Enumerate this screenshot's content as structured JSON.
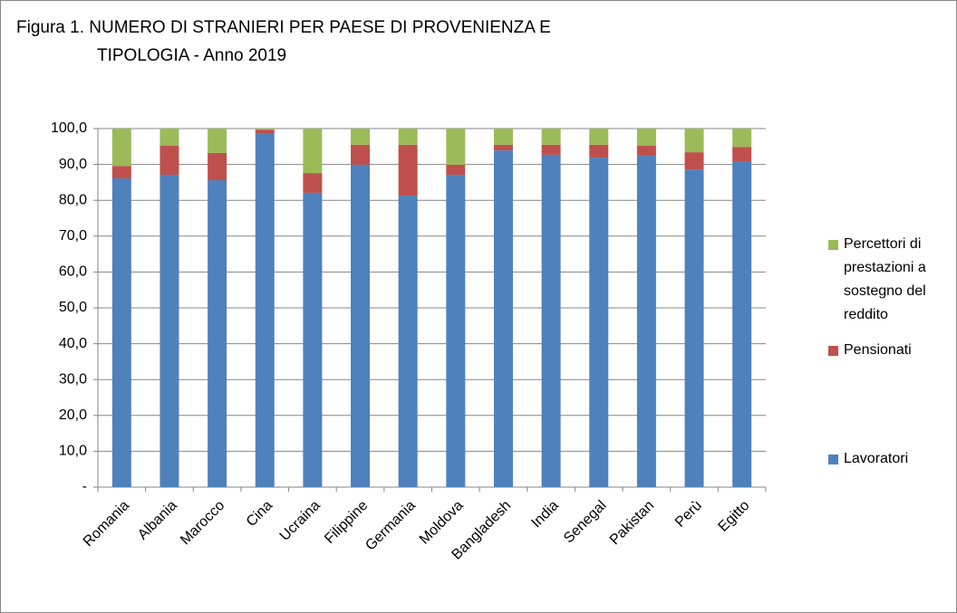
{
  "chart_data": {
    "type": "stacked_bar",
    "title": [
      "Figura 1. NUMERO DI STRANIERI PER PAESE DI PROVENIENZA E",
      "TIPOLOGIA  - Anno 2019"
    ],
    "categories": [
      "Romania",
      "Albania",
      "Marocco",
      "Cina",
      "Ucraina",
      "Filippine",
      "Germania",
      "Moldova",
      "Bangladesh",
      "India",
      "Senegal",
      "Pakistan",
      "Perù",
      "Egitto"
    ],
    "series": [
      {
        "name": "Lavoratori",
        "color": "#4f81bd",
        "values": [
          86.1,
          87.1,
          85.6,
          98.5,
          82.1,
          89.9,
          81.3,
          87.1,
          93.9,
          92.7,
          91.9,
          92.4,
          88.6,
          90.9
        ]
      },
      {
        "name": "Pensionati",
        "color": "#c0504d",
        "values": [
          3.5,
          8.1,
          7.6,
          1.2,
          5.5,
          5.6,
          14.2,
          2.8,
          1.6,
          2.8,
          3.6,
          2.8,
          4.8,
          4.0
        ]
      },
      {
        "name": "Percettori di prestazioni a sostegno del reddito",
        "color": "#9bbb59",
        "values": [
          10.4,
          4.8,
          6.8,
          0.3,
          12.4,
          4.5,
          4.5,
          10.1,
          4.5,
          4.5,
          4.5,
          4.8,
          6.6,
          5.1
        ]
      }
    ],
    "ylim": [
      0,
      100
    ],
    "yticks": [
      {
        "value": 0,
        "label": "-"
      },
      {
        "value": 10,
        "label": "10,0"
      },
      {
        "value": 20,
        "label": "20,0"
      },
      {
        "value": 30,
        "label": "30,0"
      },
      {
        "value": 40,
        "label": "40,0"
      },
      {
        "value": 50,
        "label": "50,0"
      },
      {
        "value": 60,
        "label": "60,0"
      },
      {
        "value": 70,
        "label": "70,0"
      },
      {
        "value": 80,
        "label": "80,0"
      },
      {
        "value": 90,
        "label": "90,0"
      },
      {
        "value": 100,
        "label": "100,0"
      }
    ],
    "grid": true,
    "legend": "right"
  }
}
